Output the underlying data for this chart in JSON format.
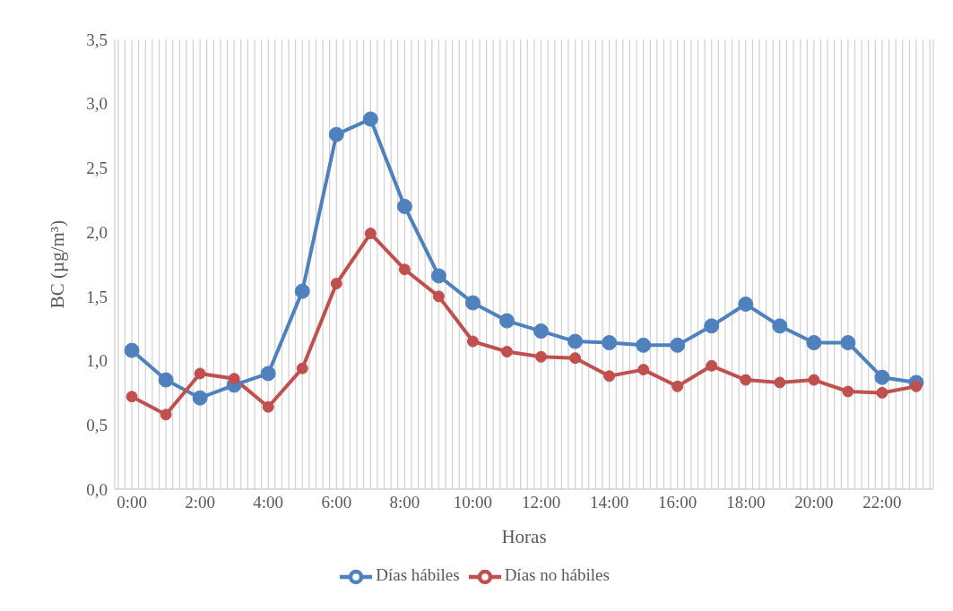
{
  "chart_data": {
    "type": "line",
    "xlabel": "Horas",
    "ylabel": "BC (µg/m³)",
    "x": [
      0,
      1,
      2,
      3,
      4,
      5,
      6,
      7,
      8,
      9,
      10,
      11,
      12,
      13,
      14,
      15,
      16,
      17,
      18,
      19,
      20,
      21,
      22,
      23
    ],
    "series": [
      {
        "name": "Días hábiles",
        "color": "#4f81bd",
        "values": [
          1.08,
          0.85,
          0.71,
          0.81,
          0.9,
          1.54,
          2.76,
          2.88,
          2.2,
          1.66,
          1.45,
          1.31,
          1.23,
          1.15,
          1.14,
          1.12,
          1.12,
          1.27,
          1.44,
          1.27,
          1.14,
          1.14,
          0.87,
          0.83
        ]
      },
      {
        "name": "Días no hábiles",
        "color": "#c0504d",
        "values": [
          0.72,
          0.58,
          0.9,
          0.86,
          0.64,
          0.94,
          1.6,
          1.99,
          1.71,
          1.5,
          1.15,
          1.07,
          1.03,
          1.02,
          0.88,
          0.93,
          0.8,
          0.96,
          0.85,
          0.83,
          0.85,
          0.76,
          0.75,
          0.8
        ]
      }
    ],
    "xlim": [
      -0.5,
      23.5
    ],
    "xticks": [
      {
        "value": -0.4,
        "label": null
      },
      {
        "value": -0.2,
        "label": null
      },
      {
        "value": 0,
        "label": "0:00"
      },
      {
        "value": 0.2,
        "label": null
      },
      {
        "value": 0.4,
        "label": null
      },
      {
        "value": 0.6,
        "label": null
      },
      {
        "value": 0.8,
        "label": null
      },
      {
        "value": 1,
        "label": null
      },
      {
        "value": 1.2,
        "label": null
      },
      {
        "value": 1.4,
        "label": null
      },
      {
        "value": 1.6,
        "label": null
      },
      {
        "value": 1.8,
        "label": null
      },
      {
        "value": 2,
        "label": "2:00"
      },
      {
        "value": 2.2,
        "label": null
      },
      {
        "value": 2.4,
        "label": null
      },
      {
        "value": 2.6,
        "label": null
      },
      {
        "value": 2.8,
        "label": null
      },
      {
        "value": 3,
        "label": null
      },
      {
        "value": 3.2,
        "label": null
      },
      {
        "value": 3.4,
        "label": null
      },
      {
        "value": 3.6,
        "label": null
      },
      {
        "value": 3.8,
        "label": null
      },
      {
        "value": 4,
        "label": "4:00"
      },
      {
        "value": 4.2,
        "label": null
      },
      {
        "value": 4.4,
        "label": null
      },
      {
        "value": 4.6,
        "label": null
      },
      {
        "value": 4.8,
        "label": null
      },
      {
        "value": 5,
        "label": null
      },
      {
        "value": 5.2,
        "label": null
      },
      {
        "value": 5.4,
        "label": null
      },
      {
        "value": 5.6,
        "label": null
      },
      {
        "value": 5.8,
        "label": null
      },
      {
        "value": 6,
        "label": "6:00"
      },
      {
        "value": 6.2,
        "label": null
      },
      {
        "value": 6.4,
        "label": null
      },
      {
        "value": 6.6,
        "label": null
      },
      {
        "value": 6.8,
        "label": null
      },
      {
        "value": 7,
        "label": null
      },
      {
        "value": 7.2,
        "label": null
      },
      {
        "value": 7.4,
        "label": null
      },
      {
        "value": 7.6,
        "label": null
      },
      {
        "value": 7.8,
        "label": null
      },
      {
        "value": 8,
        "label": "8:00"
      },
      {
        "value": 8.2,
        "label": null
      },
      {
        "value": 8.4,
        "label": null
      },
      {
        "value": 8.6,
        "label": null
      },
      {
        "value": 8.8,
        "label": null
      },
      {
        "value": 9,
        "label": null
      },
      {
        "value": 9.2,
        "label": null
      },
      {
        "value": 9.4,
        "label": null
      },
      {
        "value": 9.6,
        "label": null
      },
      {
        "value": 9.8,
        "label": null
      },
      {
        "value": 10,
        "label": "10:00"
      },
      {
        "value": 10.2,
        "label": null
      },
      {
        "value": 10.4,
        "label": null
      },
      {
        "value": 10.6,
        "label": null
      },
      {
        "value": 10.8,
        "label": null
      },
      {
        "value": 11,
        "label": null
      },
      {
        "value": 11.2,
        "label": null
      },
      {
        "value": 11.4,
        "label": null
      },
      {
        "value": 11.6,
        "label": null
      },
      {
        "value": 11.8,
        "label": null
      },
      {
        "value": 12,
        "label": "12:00"
      },
      {
        "value": 12.2,
        "label": null
      },
      {
        "value": 12.4,
        "label": null
      },
      {
        "value": 12.6,
        "label": null
      },
      {
        "value": 12.8,
        "label": null
      },
      {
        "value": 13,
        "label": null
      },
      {
        "value": 13.2,
        "label": null
      },
      {
        "value": 13.4,
        "label": null
      },
      {
        "value": 13.6,
        "label": null
      },
      {
        "value": 13.8,
        "label": null
      },
      {
        "value": 14,
        "label": "14:00"
      },
      {
        "value": 14.2,
        "label": null
      },
      {
        "value": 14.4,
        "label": null
      },
      {
        "value": 14.6,
        "label": null
      },
      {
        "value": 14.8,
        "label": null
      },
      {
        "value": 15,
        "label": null
      },
      {
        "value": 15.2,
        "label": null
      },
      {
        "value": 15.4,
        "label": null
      },
      {
        "value": 15.6,
        "label": null
      },
      {
        "value": 15.8,
        "label": null
      },
      {
        "value": 16,
        "label": "16:00"
      },
      {
        "value": 16.2,
        "label": null
      },
      {
        "value": 16.4,
        "label": null
      },
      {
        "value": 16.6,
        "label": null
      },
      {
        "value": 16.8,
        "label": null
      },
      {
        "value": 17,
        "label": null
      },
      {
        "value": 17.2,
        "label": null
      },
      {
        "value": 17.4,
        "label": null
      },
      {
        "value": 17.6,
        "label": null
      },
      {
        "value": 17.8,
        "label": null
      },
      {
        "value": 18,
        "label": "18:00"
      },
      {
        "value": 18.2,
        "label": null
      },
      {
        "value": 18.4,
        "label": null
      },
      {
        "value": 18.6,
        "label": null
      },
      {
        "value": 18.8,
        "label": null
      },
      {
        "value": 19,
        "label": null
      },
      {
        "value": 19.2,
        "label": null
      },
      {
        "value": 19.4,
        "label": null
      },
      {
        "value": 19.6,
        "label": null
      },
      {
        "value": 19.8,
        "label": null
      },
      {
        "value": 20,
        "label": "20:00"
      },
      {
        "value": 20.2,
        "label": null
      },
      {
        "value": 20.4,
        "label": null
      },
      {
        "value": 20.6,
        "label": null
      },
      {
        "value": 20.8,
        "label": null
      },
      {
        "value": 21,
        "label": null
      },
      {
        "value": 21.2,
        "label": null
      },
      {
        "value": 21.4,
        "label": null
      },
      {
        "value": 21.6,
        "label": null
      },
      {
        "value": 21.8,
        "label": null
      },
      {
        "value": 22,
        "label": "22:00"
      },
      {
        "value": 22.2,
        "label": null
      },
      {
        "value": 22.4,
        "label": null
      },
      {
        "value": 22.6,
        "label": null
      },
      {
        "value": 22.8,
        "label": null
      },
      {
        "value": 23,
        "label": null
      },
      {
        "value": 23.2,
        "label": null
      },
      {
        "value": 23.4,
        "label": null
      }
    ],
    "ylim": [
      0,
      3.5
    ],
    "yticks": [
      {
        "value": 0,
        "label": "0,0"
      },
      {
        "value": 0.5,
        "label": "0,5"
      },
      {
        "value": 1,
        "label": "1,0"
      },
      {
        "value": 1.5,
        "label": "1,5"
      },
      {
        "value": 2,
        "label": "2,0"
      },
      {
        "value": 2.5,
        "label": "2,5"
      },
      {
        "value": 3,
        "label": "3,0"
      },
      {
        "value": 3.5,
        "label": "3,5"
      }
    ],
    "grid": "x",
    "legend": "bottom",
    "marker": "circle",
    "line_style": "solid"
  }
}
